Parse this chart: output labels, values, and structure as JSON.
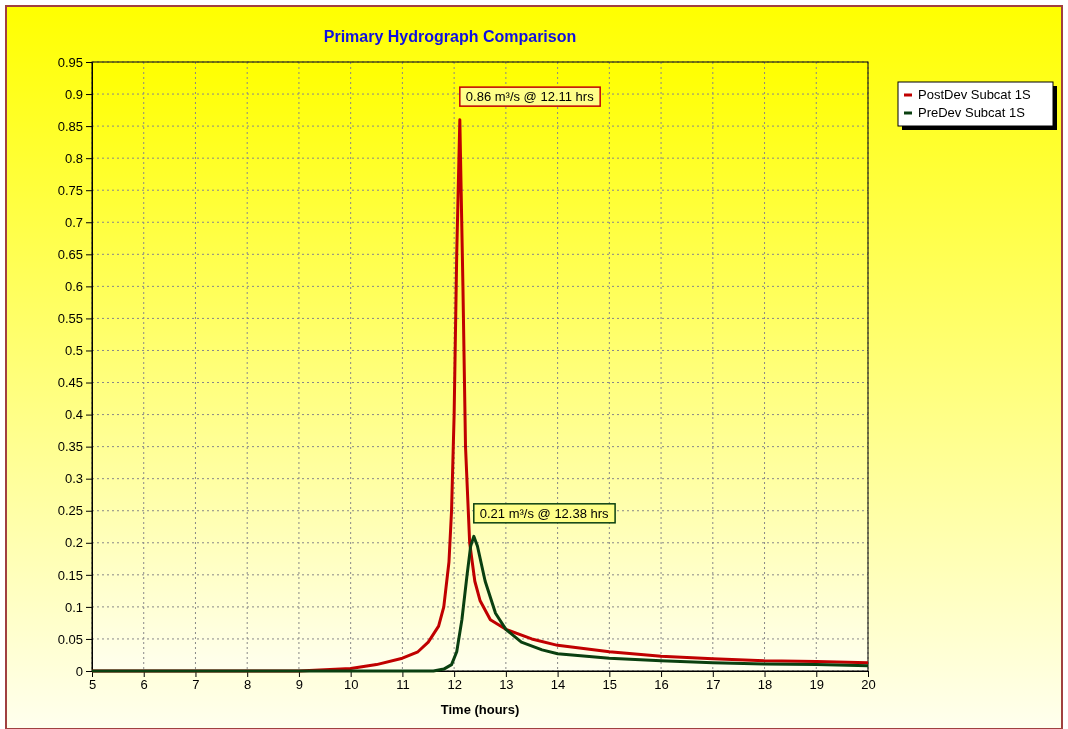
{
  "chart_data": {
    "type": "line",
    "title": "Primary Hydrograph Comparison",
    "xlabel": "Time (hours)",
    "xlim": [
      5,
      20
    ],
    "xticks": [
      5,
      6,
      7,
      8,
      9,
      10,
      11,
      12,
      13,
      14,
      15,
      16,
      17,
      18,
      19,
      20
    ],
    "ylim": [
      0,
      0.95
    ],
    "yticks": [
      0,
      0.05,
      0.1,
      0.15,
      0.2,
      0.25,
      0.3,
      0.35,
      0.4,
      0.45,
      0.5,
      0.55,
      0.6,
      0.65,
      0.7,
      0.75,
      0.8,
      0.85,
      0.9,
      0.95
    ],
    "grid": true,
    "legend": "top right",
    "line_style": "solid",
    "series": [
      {
        "name": "PostDev Subcat 1S",
        "color": "#c00000",
        "x": [
          5,
          9,
          10,
          10.5,
          11,
          11.3,
          11.5,
          11.7,
          11.8,
          11.9,
          11.95,
          12,
          12.05,
          12.11,
          12.17,
          12.22,
          12.3,
          12.4,
          12.5,
          12.7,
          13,
          13.5,
          14,
          15,
          16,
          17,
          18,
          19,
          20
        ],
        "values": [
          0,
          0,
          0.004,
          0.01,
          0.02,
          0.03,
          0.045,
          0.07,
          0.1,
          0.17,
          0.25,
          0.4,
          0.65,
          0.86,
          0.6,
          0.35,
          0.2,
          0.14,
          0.11,
          0.08,
          0.065,
          0.05,
          0.04,
          0.03,
          0.023,
          0.019,
          0.016,
          0.015,
          0.013
        ]
      },
      {
        "name": "PreDev Subcat 1S",
        "color": "#0a4010",
        "x": [
          5,
          11.6,
          11.8,
          11.95,
          12.05,
          12.15,
          12.25,
          12.32,
          12.38,
          12.45,
          12.6,
          12.8,
          13,
          13.3,
          13.7,
          14,
          15,
          16,
          17,
          18,
          19,
          20
        ],
        "values": [
          0,
          0,
          0.003,
          0.01,
          0.03,
          0.08,
          0.15,
          0.195,
          0.21,
          0.195,
          0.14,
          0.09,
          0.065,
          0.045,
          0.033,
          0.027,
          0.02,
          0.016,
          0.013,
          0.011,
          0.01,
          0.008
        ]
      }
    ],
    "annotations": [
      {
        "text": "0.86 m³/s @ 12.11 hrs",
        "x": 12.11,
        "y": 0.86
      },
      {
        "text": "0.21 m³/s @ 12.38 hrs",
        "x": 12.38,
        "y": 0.21
      }
    ]
  }
}
